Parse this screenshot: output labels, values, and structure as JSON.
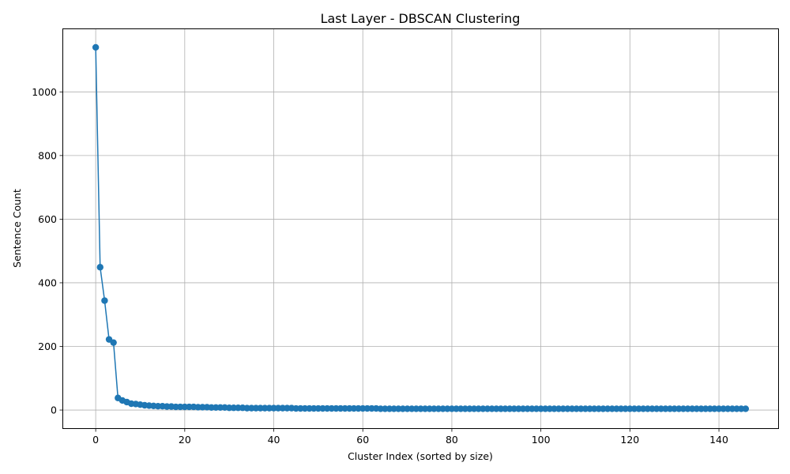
{
  "chart_data": {
    "type": "line",
    "title": "Last Layer - DBSCAN Clustering",
    "xlabel": "Cluster Index (sorted by size)",
    "ylabel": "Sentence Count",
    "xlim": [
      -7.3,
      153.3
    ],
    "ylim": [
      -57,
      1197
    ],
    "xticks": [
      0,
      20,
      40,
      60,
      80,
      100,
      120,
      140
    ],
    "yticks": [
      0,
      200,
      400,
      600,
      800,
      1000
    ],
    "grid": true,
    "color": "#1f77b4",
    "marker": "circle",
    "series": [
      {
        "x": [
          0,
          1,
          2,
          3,
          4,
          5,
          6,
          7,
          8,
          9,
          10,
          11,
          12,
          13,
          14,
          15,
          16,
          17,
          18,
          19,
          20,
          21,
          22,
          23,
          24,
          25,
          26,
          27,
          28,
          29,
          30,
          31,
          32,
          33,
          34,
          35,
          36,
          37,
          38,
          39,
          40,
          41,
          42,
          43,
          44,
          45,
          46,
          47,
          48,
          49,
          50,
          51,
          52,
          53,
          54,
          55,
          56,
          57,
          58,
          59,
          60,
          61,
          62,
          63,
          64,
          65,
          66,
          67,
          68,
          69,
          70,
          71,
          72,
          73,
          74,
          75,
          76,
          77,
          78,
          79,
          80,
          81,
          82,
          83,
          84,
          85,
          86,
          87,
          88,
          89,
          90,
          91,
          92,
          93,
          94,
          95,
          96,
          97,
          98,
          99,
          100,
          101,
          102,
          103,
          104,
          105,
          106,
          107,
          108,
          109,
          110,
          111,
          112,
          113,
          114,
          115,
          116,
          117,
          118,
          119,
          120,
          121,
          122,
          123,
          124,
          125,
          126,
          127,
          128,
          129,
          130,
          131,
          132,
          133,
          134,
          135,
          136,
          137,
          138,
          139,
          140,
          141,
          142,
          143,
          144,
          145,
          146
        ],
        "y": [
          1140,
          449,
          344,
          222,
          212,
          38,
          30,
          25,
          20,
          19,
          17,
          15,
          14,
          13,
          12,
          12,
          11,
          11,
          10,
          10,
          10,
          10,
          10,
          9,
          9,
          9,
          8,
          8,
          8,
          8,
          7,
          7,
          7,
          7,
          6,
          6,
          6,
          6,
          6,
          6,
          6,
          6,
          6,
          6,
          6,
          5,
          5,
          5,
          5,
          5,
          5,
          5,
          5,
          5,
          5,
          5,
          5,
          5,
          5,
          5,
          5,
          5,
          5,
          5,
          4,
          4,
          4,
          4,
          4,
          4,
          4,
          4,
          4,
          4,
          4,
          4,
          4,
          4,
          4,
          4,
          4,
          4,
          4,
          4,
          4,
          4,
          4,
          4,
          4,
          4,
          4,
          4,
          4,
          4,
          4,
          4,
          4,
          4,
          4,
          4,
          4,
          4,
          4,
          4,
          4,
          4,
          4,
          4,
          4,
          4,
          4,
          4,
          4,
          4,
          4,
          4,
          4,
          4,
          4,
          4,
          4,
          4,
          4,
          4,
          4,
          4,
          4,
          4,
          4,
          4,
          4,
          4,
          4,
          4,
          4,
          4,
          4,
          4,
          4,
          4,
          4,
          4,
          4,
          4,
          4,
          4,
          4
        ]
      }
    ]
  }
}
